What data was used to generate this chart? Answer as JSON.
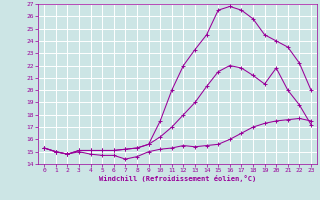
{
  "xlabel": "Windchill (Refroidissement éolien,°C)",
  "bg_color": "#cce5e5",
  "grid_color": "#ffffff",
  "line_color": "#990099",
  "xlim": [
    -0.5,
    23.5
  ],
  "ylim": [
    14,
    27
  ],
  "xticks": [
    0,
    1,
    2,
    3,
    4,
    5,
    6,
    7,
    8,
    9,
    10,
    11,
    12,
    13,
    14,
    15,
    16,
    17,
    18,
    19,
    20,
    21,
    22,
    23
  ],
  "yticks": [
    14,
    15,
    16,
    17,
    18,
    19,
    20,
    21,
    22,
    23,
    24,
    25,
    26,
    27
  ],
  "line1_x": [
    0,
    1,
    2,
    3,
    4,
    5,
    6,
    7,
    8,
    9,
    10,
    11,
    12,
    13,
    14,
    15,
    16,
    17,
    18,
    19,
    20,
    21,
    22,
    23
  ],
  "line1_y": [
    15.3,
    15.0,
    14.8,
    15.0,
    14.8,
    14.7,
    14.7,
    14.4,
    14.6,
    15.0,
    15.2,
    15.3,
    15.5,
    15.4,
    15.5,
    15.6,
    16.0,
    16.5,
    17.0,
    17.3,
    17.5,
    17.6,
    17.7,
    17.5
  ],
  "line2_x": [
    0,
    1,
    2,
    3,
    4,
    5,
    6,
    7,
    8,
    9,
    10,
    11,
    12,
    13,
    14,
    15,
    16,
    17,
    18,
    19,
    20,
    21,
    22,
    23
  ],
  "line2_y": [
    15.3,
    15.0,
    14.8,
    15.1,
    15.1,
    15.1,
    15.1,
    15.2,
    15.3,
    15.6,
    16.2,
    17.0,
    18.0,
    19.0,
    20.3,
    21.5,
    22.0,
    21.8,
    21.2,
    20.5,
    21.8,
    20.0,
    18.8,
    17.2
  ],
  "line3_x": [
    0,
    1,
    2,
    3,
    4,
    5,
    6,
    7,
    8,
    9,
    10,
    11,
    12,
    13,
    14,
    15,
    16,
    17,
    18,
    19,
    20,
    21,
    22,
    23
  ],
  "line3_y": [
    15.3,
    15.0,
    14.8,
    15.1,
    15.1,
    15.1,
    15.1,
    15.2,
    15.3,
    15.6,
    17.5,
    20.0,
    22.0,
    23.3,
    24.5,
    26.5,
    26.8,
    26.5,
    25.8,
    24.5,
    24.0,
    23.5,
    22.2,
    20.0
  ]
}
